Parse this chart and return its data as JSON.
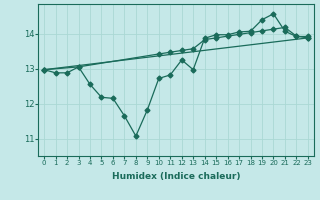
{
  "xlabel": "Humidex (Indice chaleur)",
  "bg_color": "#c5e8e8",
  "line_color": "#1a6b5a",
  "grid_color": "#aad8d4",
  "line1_x": [
    0,
    1,
    2,
    3,
    4,
    5,
    6,
    7,
    8,
    9,
    10,
    11,
    12,
    13,
    14,
    15,
    16,
    17,
    18,
    19,
    20,
    21,
    22,
    23
  ],
  "line1_y": [
    12.97,
    12.88,
    12.88,
    13.05,
    12.55,
    12.18,
    12.15,
    11.65,
    11.07,
    11.82,
    12.72,
    12.82,
    13.25,
    12.97,
    13.87,
    13.97,
    13.97,
    14.05,
    14.07,
    14.4,
    14.57,
    14.07,
    13.92,
    13.92
  ],
  "line2_x": [
    0,
    3,
    10,
    11,
    12,
    13,
    14,
    15,
    16,
    17,
    18,
    19,
    20,
    21,
    22,
    23
  ],
  "line2_y": [
    12.97,
    13.05,
    13.42,
    13.47,
    13.52,
    13.57,
    13.83,
    13.88,
    13.93,
    13.98,
    14.03,
    14.08,
    14.13,
    14.18,
    13.93,
    13.88
  ],
  "line3_x": [
    0,
    23
  ],
  "line3_y": [
    12.97,
    13.88
  ],
  "ylim": [
    10.5,
    14.85
  ],
  "yticks": [
    11,
    12,
    13,
    14
  ],
  "xticks": [
    0,
    1,
    2,
    3,
    4,
    5,
    6,
    7,
    8,
    9,
    10,
    11,
    12,
    13,
    14,
    15,
    16,
    17,
    18,
    19,
    20,
    21,
    22,
    23
  ],
  "marker_size": 2.5,
  "lw": 0.9
}
